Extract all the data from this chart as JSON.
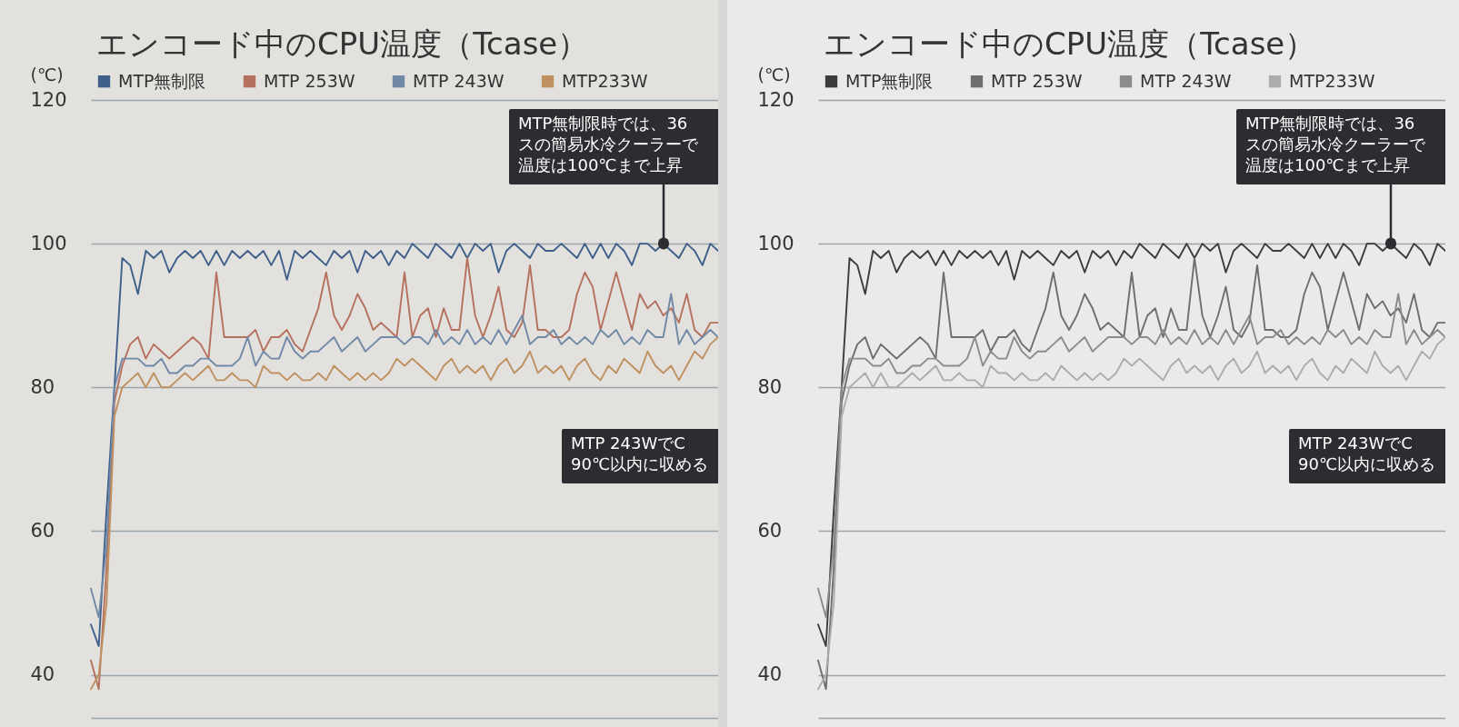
{
  "chart_data": [
    {
      "type": "line",
      "title": "エンコード中のCPU温度（Tcase）",
      "ylabel": "(℃)",
      "categories": [
        null,
        null,
        null,
        null,
        null,
        null,
        null,
        null,
        null,
        null,
        null,
        null,
        null,
        null,
        null,
        null,
        null,
        null,
        null,
        null,
        null,
        null,
        null,
        null,
        null,
        null,
        null,
        null,
        null,
        null,
        null,
        null,
        null,
        null,
        null,
        null,
        null,
        null,
        null,
        null,
        null,
        null,
        null,
        null,
        null,
        null,
        null,
        null,
        null,
        null,
        null,
        null,
        null,
        null,
        null,
        null,
        null,
        null,
        null,
        null,
        null,
        null,
        null,
        null,
        null,
        null,
        null,
        null,
        null,
        null,
        null,
        null,
        null,
        null,
        null,
        null,
        null,
        null,
        null,
        null,
        null
      ],
      "series": [
        {
          "name": "MTP無制限",
          "color": "#3e5f8a",
          "values": [
            47,
            44,
            63,
            80,
            98,
            97,
            93,
            99,
            98,
            99,
            96,
            98,
            99,
            98,
            99,
            97,
            99,
            97,
            99,
            98,
            99,
            98,
            99,
            97,
            99,
            95,
            99,
            98,
            99,
            98,
            97,
            99,
            98,
            99,
            96,
            99,
            98,
            99,
            97,
            99,
            98,
            100,
            99,
            98,
            100,
            99,
            98,
            100,
            98,
            100,
            99,
            100,
            96,
            99,
            100,
            99,
            98,
            100,
            99,
            99,
            100,
            99,
            98,
            100,
            98,
            100,
            98,
            100,
            99,
            97,
            100,
            100,
            99,
            100,
            99,
            98,
            100,
            99,
            97,
            100,
            99
          ]
        },
        {
          "name": "MTP 253W",
          "color": "#b5705e",
          "values": [
            42,
            38,
            55,
            78,
            83,
            86,
            87,
            84,
            86,
            85,
            84,
            85,
            86,
            87,
            86,
            84,
            96,
            87,
            87,
            87,
            87,
            88,
            85,
            87,
            87,
            88,
            86,
            85,
            88,
            91,
            96,
            90,
            88,
            90,
            93,
            91,
            88,
            89,
            88,
            87,
            96,
            87,
            90,
            91,
            87,
            91,
            88,
            88,
            98,
            90,
            87,
            90,
            94,
            88,
            87,
            89,
            97,
            88,
            88,
            87,
            87,
            88,
            93,
            96,
            94,
            88,
            92,
            96,
            92,
            88,
            93,
            91,
            92,
            90,
            91,
            89,
            93,
            88,
            87,
            89,
            89
          ]
        },
        {
          "name": "MTP 243W",
          "color": "#7189a6",
          "values": [
            52,
            48,
            58,
            80,
            84,
            84,
            84,
            83,
            83,
            84,
            82,
            82,
            83,
            83,
            84,
            84,
            83,
            83,
            83,
            84,
            87,
            83,
            85,
            84,
            84,
            87,
            85,
            84,
            85,
            85,
            86,
            87,
            85,
            86,
            87,
            85,
            86,
            87,
            87,
            87,
            86,
            87,
            87,
            86,
            88,
            86,
            87,
            86,
            88,
            86,
            87,
            86,
            88,
            86,
            88,
            90,
            86,
            87,
            87,
            88,
            86,
            87,
            86,
            87,
            86,
            88,
            87,
            88,
            86,
            87,
            86,
            88,
            87,
            87,
            93,
            86,
            88,
            86,
            87,
            88,
            87
          ]
        },
        {
          "name": "MTP233W",
          "color": "#bf9060",
          "values": [
            38,
            40,
            50,
            76,
            80,
            81,
            82,
            80,
            82,
            80,
            80,
            81,
            82,
            81,
            82,
            83,
            81,
            81,
            82,
            81,
            81,
            80,
            83,
            82,
            82,
            81,
            82,
            81,
            81,
            82,
            81,
            83,
            82,
            81,
            82,
            81,
            82,
            81,
            82,
            84,
            83,
            84,
            83,
            82,
            81,
            83,
            84,
            82,
            83,
            82,
            83,
            81,
            83,
            84,
            82,
            83,
            85,
            82,
            83,
            82,
            83,
            81,
            83,
            84,
            82,
            81,
            83,
            82,
            84,
            83,
            82,
            85,
            83,
            82,
            83,
            81,
            83,
            85,
            84,
            86,
            87
          ]
        }
      ],
      "ylim": [
        34,
        120
      ],
      "yticks": [
        40,
        60,
        80,
        100,
        120
      ],
      "grid": "y",
      "legend": "top left",
      "annotations": [
        "MTP無制限時では、36",
        "スの簡易水冷クーラーで",
        "温度は100℃まで上昇",
        "MTP 243WでC",
        "90℃以内に収める"
      ]
    },
    {
      "type": "line",
      "title": "エンコード中のCPU温度（Tcase）",
      "ylabel": "(℃)",
      "categories": [
        null,
        null,
        null,
        null,
        null,
        null,
        null,
        null,
        null,
        null,
        null,
        null,
        null,
        null,
        null,
        null,
        null,
        null,
        null,
        null,
        null,
        null,
        null,
        null,
        null,
        null,
        null,
        null,
        null,
        null,
        null,
        null,
        null,
        null,
        null,
        null,
        null,
        null,
        null,
        null,
        null,
        null,
        null,
        null,
        null,
        null,
        null,
        null,
        null,
        null,
        null,
        null,
        null,
        null,
        null,
        null,
        null,
        null,
        null,
        null,
        null,
        null,
        null,
        null,
        null,
        null,
        null,
        null,
        null,
        null,
        null,
        null,
        null,
        null,
        null,
        null,
        null,
        null,
        null,
        null,
        null
      ],
      "series": [
        {
          "name": "MTP無制限",
          "color": "#3c3c3c",
          "values": [
            47,
            44,
            63,
            80,
            98,
            97,
            93,
            99,
            98,
            99,
            96,
            98,
            99,
            98,
            99,
            97,
            99,
            97,
            99,
            98,
            99,
            98,
            99,
            97,
            99,
            95,
            99,
            98,
            99,
            98,
            97,
            99,
            98,
            99,
            96,
            99,
            98,
            99,
            97,
            99,
            98,
            100,
            99,
            98,
            100,
            99,
            98,
            100,
            98,
            100,
            99,
            100,
            96,
            99,
            100,
            99,
            98,
            100,
            99,
            99,
            100,
            99,
            98,
            100,
            98,
            100,
            98,
            100,
            99,
            97,
            100,
            100,
            99,
            100,
            99,
            98,
            100,
            99,
            97,
            100,
            99
          ]
        },
        {
          "name": "MTP 253W",
          "color": "#6e6e6e",
          "values": [
            42,
            38,
            55,
            78,
            83,
            86,
            87,
            84,
            86,
            85,
            84,
            85,
            86,
            87,
            86,
            84,
            96,
            87,
            87,
            87,
            87,
            88,
            85,
            87,
            87,
            88,
            86,
            85,
            88,
            91,
            96,
            90,
            88,
            90,
            93,
            91,
            88,
            89,
            88,
            87,
            96,
            87,
            90,
            91,
            87,
            91,
            88,
            88,
            98,
            90,
            87,
            90,
            94,
            88,
            87,
            89,
            97,
            88,
            88,
            87,
            87,
            88,
            93,
            96,
            94,
            88,
            92,
            96,
            92,
            88,
            93,
            91,
            92,
            90,
            91,
            89,
            93,
            88,
            87,
            89,
            89
          ]
        },
        {
          "name": "MTP 243W",
          "color": "#8c8c8c",
          "values": [
            52,
            48,
            58,
            80,
            84,
            84,
            84,
            83,
            83,
            84,
            82,
            82,
            83,
            83,
            84,
            84,
            83,
            83,
            83,
            84,
            87,
            83,
            85,
            84,
            84,
            87,
            85,
            84,
            85,
            85,
            86,
            87,
            85,
            86,
            87,
            85,
            86,
            87,
            87,
            87,
            86,
            87,
            87,
            86,
            88,
            86,
            87,
            86,
            88,
            86,
            87,
            86,
            88,
            86,
            88,
            90,
            86,
            87,
            87,
            88,
            86,
            87,
            86,
            87,
            86,
            88,
            87,
            88,
            86,
            87,
            86,
            88,
            87,
            87,
            93,
            86,
            88,
            86,
            87,
            88,
            87
          ]
        },
        {
          "name": "MTP233W",
          "color": "#acacac",
          "values": [
            38,
            40,
            50,
            76,
            80,
            81,
            82,
            80,
            82,
            80,
            80,
            81,
            82,
            81,
            82,
            83,
            81,
            81,
            82,
            81,
            81,
            80,
            83,
            82,
            82,
            81,
            82,
            81,
            81,
            82,
            81,
            83,
            82,
            81,
            82,
            81,
            82,
            81,
            82,
            84,
            83,
            84,
            83,
            82,
            81,
            83,
            84,
            82,
            83,
            82,
            83,
            81,
            83,
            84,
            82,
            83,
            85,
            82,
            83,
            82,
            83,
            81,
            83,
            84,
            82,
            81,
            83,
            82,
            84,
            83,
            82,
            85,
            83,
            82,
            83,
            81,
            83,
            85,
            84,
            86,
            87
          ]
        }
      ],
      "ylim": [
        34,
        120
      ],
      "yticks": [
        40,
        60,
        80,
        100,
        120
      ],
      "grid": "y",
      "legend": "top left",
      "annotations": [
        "MTP無制限時では、36",
        "スの簡易水冷クーラーで",
        "温度は100℃まで上昇",
        "MTP 243WでC",
        "90℃以内に収める"
      ]
    }
  ]
}
